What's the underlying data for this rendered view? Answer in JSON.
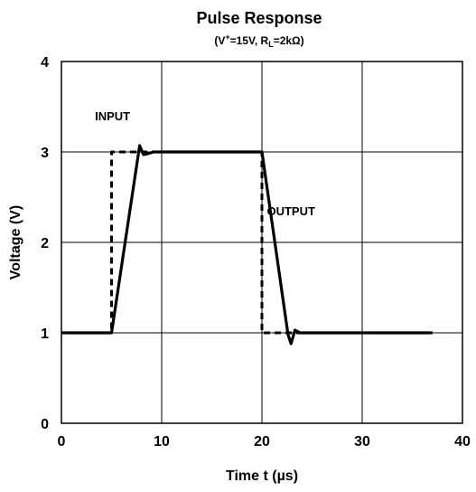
{
  "chart_data": {
    "type": "line",
    "title": "Pulse Response",
    "subtitle_parts": {
      "open": "(V",
      "sup": "+",
      "mid": "=15V, R",
      "sub": "L",
      "close": "=2kΩ)"
    },
    "xlabel": "Time t (µs)",
    "ylabel": "Voltage (V)",
    "xlim": [
      0,
      40
    ],
    "ylim": [
      0,
      4
    ],
    "x_ticks": [
      0,
      10,
      20,
      30,
      40
    ],
    "y_ticks": [
      0,
      1,
      2,
      3,
      4
    ],
    "grid": true,
    "series": [
      {
        "name": "INPUT",
        "style": "dashed",
        "color": "#000000",
        "x": [
          0,
          5,
          5,
          20,
          20,
          37
        ],
        "y": [
          1,
          1,
          3,
          3,
          1,
          1
        ]
      },
      {
        "name": "OUTPUT",
        "style": "solid",
        "color": "#000000",
        "x": [
          0,
          5,
          7.8,
          8.2,
          8.6,
          9.2,
          20,
          22.6,
          22.9,
          23.3,
          23.8,
          37
        ],
        "y": [
          1,
          1,
          3.07,
          2.97,
          2.98,
          3,
          3,
          0.98,
          0.88,
          1.03,
          1,
          1
        ]
      }
    ],
    "annotations": [
      {
        "text": "INPUT",
        "x": 5.1,
        "y": 3.35
      },
      {
        "text": "OUTPUT",
        "x": 22.9,
        "y": 2.3
      }
    ]
  }
}
